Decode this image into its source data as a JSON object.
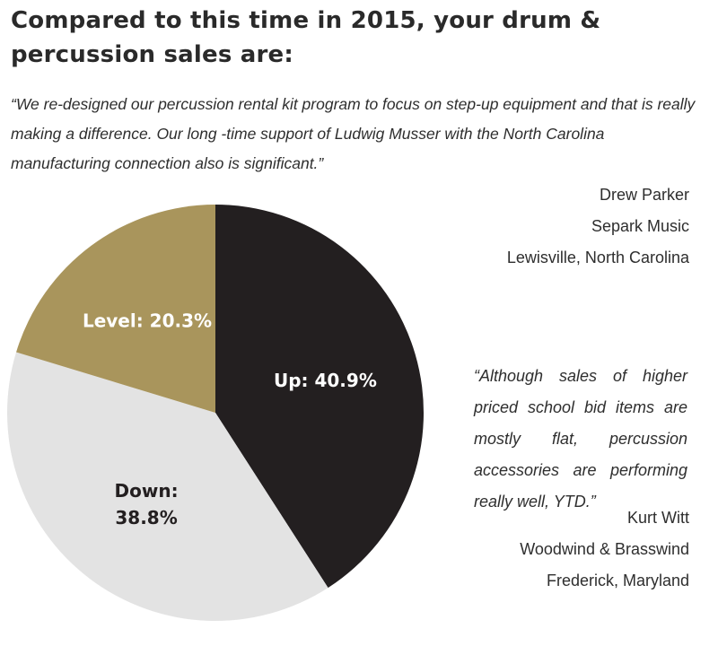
{
  "title": "Compared to this time in 2015, your drum & percussion sales are:",
  "quote1": {
    "text": "“We re-designed our percussion rental kit program to focus on step-up equipment and that is really making a difference. Our long -time support of Ludwig Musser with the North Carolina manufacturing connection also is significant.”",
    "name": "Drew Parker",
    "company": "Separk Music",
    "location": "Lewisville, North Carolina"
  },
  "quote2": {
    "text": "“Although sales of higher priced school bid items are mostly flat, per­cussion accessories are per­forming really well, YTD.”",
    "name": "Kurt Witt",
    "company": "Woodwind & Brasswind",
    "location": "Frederick, Maryland"
  },
  "chart_data": {
    "type": "pie",
    "slices": [
      {
        "label": "Up",
        "value": 40.9,
        "display": "Up: 40.9%",
        "color": "#231f20",
        "text_color": "#ffffff"
      },
      {
        "label": "Down",
        "value": 38.8,
        "display": "Down:\n38.8%",
        "color": "#e3e3e3",
        "text_color": "#231f20"
      },
      {
        "label": "Level",
        "value": 20.3,
        "display": "Level: 20.3%",
        "color": "#a9955c",
        "text_color": "#ffffff"
      }
    ]
  }
}
